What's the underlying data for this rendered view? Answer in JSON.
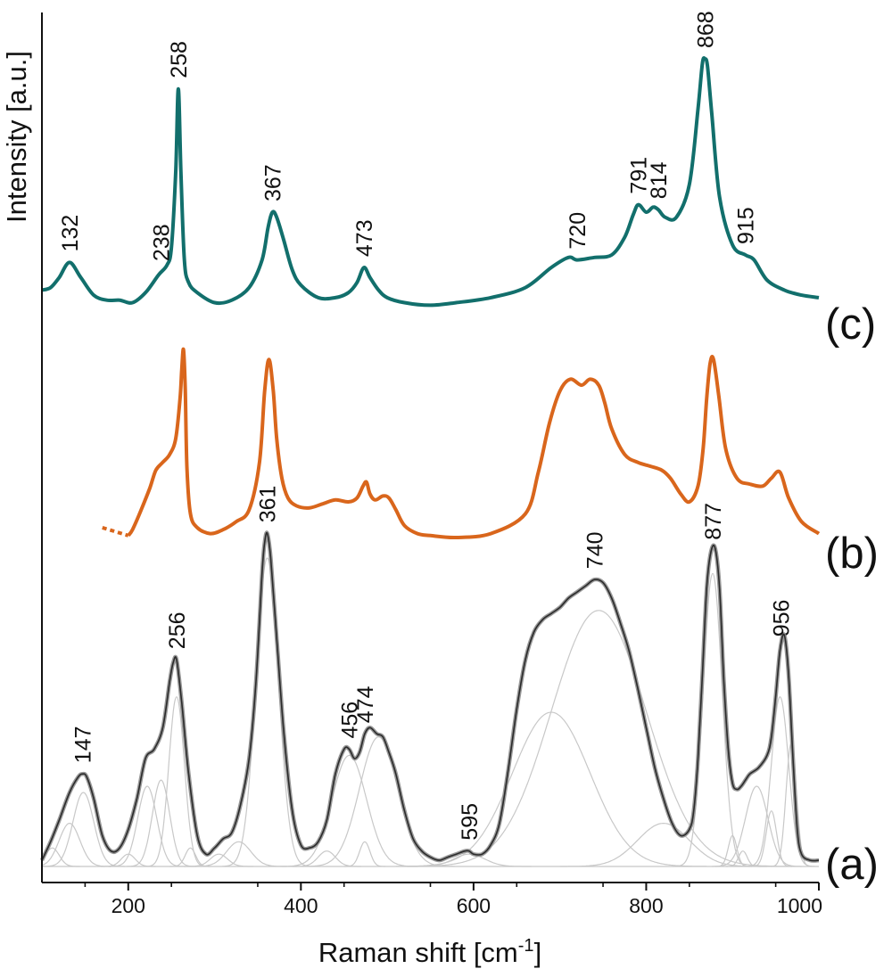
{
  "chart_data": {
    "type": "line",
    "title": "",
    "xlabel": "Raman shift [cm",
    "xlabel_superscript": "-1",
    "xlabel_suffix": "]",
    "ylabel": "Intensity [a.u.]",
    "xlim": [
      100,
      1000
    ],
    "x_ticks": [
      200,
      400,
      600,
      800,
      1000
    ],
    "grid": false,
    "colors": {
      "c": "#126f6c",
      "b": "#d9661c",
      "a_fit": "#2b2b2b",
      "a_raw": "#999999",
      "components": "#c8c8c8",
      "axis": "#111111"
    },
    "series": [
      {
        "name": "(c)",
        "peak_labels": [
          "132",
          "238",
          "258",
          "367",
          "473",
          "720",
          "791",
          "814",
          "868",
          "915"
        ],
        "peak_positions": [
          132,
          238,
          258,
          367,
          473,
          720,
          791,
          814,
          868,
          915
        ],
        "x": [
          100,
          110,
          120,
          132,
          145,
          160,
          175,
          190,
          205,
          220,
          235,
          245,
          250,
          255,
          258,
          261,
          265,
          270,
          280,
          300,
          320,
          340,
          355,
          362,
          367,
          372,
          380,
          390,
          400,
          420,
          440,
          455,
          465,
          473,
          480,
          490,
          500,
          520,
          550,
          580,
          620,
          660,
          690,
          710,
          720,
          740,
          760,
          775,
          785,
          791,
          800,
          808,
          814,
          822,
          835,
          850,
          860,
          865,
          868,
          871,
          876,
          885,
          900,
          915,
          925,
          940,
          960,
          980,
          1000
        ],
        "y": [
          0.08,
          0.09,
          0.13,
          0.19,
          0.13,
          0.06,
          0.04,
          0.04,
          0.03,
          0.07,
          0.14,
          0.18,
          0.25,
          0.55,
          0.88,
          0.55,
          0.2,
          0.11,
          0.07,
          0.03,
          0.04,
          0.09,
          0.2,
          0.33,
          0.39,
          0.37,
          0.28,
          0.16,
          0.1,
          0.05,
          0.05,
          0.07,
          0.11,
          0.17,
          0.13,
          0.08,
          0.05,
          0.03,
          0.02,
          0.03,
          0.05,
          0.09,
          0.17,
          0.21,
          0.2,
          0.21,
          0.22,
          0.29,
          0.38,
          0.42,
          0.39,
          0.41,
          0.4,
          0.37,
          0.37,
          0.5,
          0.8,
          0.98,
          1.0,
          0.97,
          0.78,
          0.45,
          0.26,
          0.22,
          0.2,
          0.12,
          0.08,
          0.06,
          0.05
        ]
      },
      {
        "name": "(b)",
        "x": [
          200,
          205,
          215,
          225,
          232,
          240,
          248,
          255,
          260,
          262,
          264,
          266,
          268,
          272,
          280,
          295,
          310,
          325,
          340,
          352,
          358,
          363,
          368,
          372,
          378,
          385,
          395,
          410,
          425,
          440,
          455,
          465,
          472,
          476,
          480,
          486,
          495,
          502,
          510,
          520,
          535,
          550,
          580,
          620,
          660,
          675,
          688,
          700,
          712,
          725,
          735,
          745,
          752,
          760,
          775,
          790,
          805,
          818,
          828,
          840,
          850,
          860,
          866,
          870,
          874,
          878,
          884,
          892,
          905,
          920,
          935,
          945,
          955,
          965,
          980,
          1000
        ],
        "y": [
          0.01,
          0.04,
          0.14,
          0.25,
          0.34,
          0.38,
          0.42,
          0.5,
          0.7,
          0.85,
          0.95,
          0.75,
          0.35,
          0.12,
          0.05,
          0.02,
          0.04,
          0.08,
          0.14,
          0.38,
          0.74,
          0.9,
          0.74,
          0.5,
          0.3,
          0.2,
          0.16,
          0.15,
          0.17,
          0.19,
          0.18,
          0.2,
          0.26,
          0.28,
          0.22,
          0.19,
          0.21,
          0.2,
          0.14,
          0.06,
          0.02,
          0.01,
          0.0,
          0.02,
          0.12,
          0.33,
          0.58,
          0.74,
          0.8,
          0.77,
          0.8,
          0.77,
          0.68,
          0.55,
          0.42,
          0.38,
          0.36,
          0.34,
          0.3,
          0.22,
          0.18,
          0.26,
          0.45,
          0.7,
          0.88,
          0.9,
          0.72,
          0.45,
          0.3,
          0.27,
          0.26,
          0.3,
          0.33,
          0.2,
          0.08,
          0.02
        ],
        "dashed_x": [
          170,
          200
        ],
        "dashed_y": [
          0.05,
          0.01
        ]
      },
      {
        "name": "(a)",
        "peak_labels": [
          "147",
          "256",
          "361",
          "456",
          "474",
          "595",
          "740",
          "877",
          "956"
        ],
        "peak_positions": [
          147,
          256,
          361,
          456,
          474,
          595,
          740,
          877,
          956
        ],
        "x": [
          100,
          110,
          120,
          132,
          142,
          147,
          152,
          160,
          170,
          180,
          190,
          200,
          210,
          220,
          230,
          240,
          248,
          252,
          256,
          262,
          270,
          280,
          290,
          300,
          310,
          320,
          330,
          340,
          348,
          355,
          358,
          361,
          365,
          372,
          380,
          390,
          400,
          410,
          420,
          430,
          440,
          450,
          456,
          462,
          468,
          474,
          480,
          488,
          495,
          502,
          510,
          520,
          530,
          540,
          550,
          560,
          570,
          580,
          590,
          595,
          600,
          610,
          620,
          630,
          640,
          650,
          660,
          670,
          680,
          690,
          700,
          710,
          720,
          730,
          740,
          750,
          760,
          770,
          780,
          790,
          800,
          810,
          820,
          830,
          840,
          850,
          855,
          860,
          865,
          870,
          875,
          880,
          885,
          890,
          895,
          900,
          905,
          910,
          915,
          920,
          930,
          940,
          945,
          950,
          955,
          960,
          965,
          970,
          975,
          980,
          990,
          1000
        ],
        "y": [
          0.02,
          0.08,
          0.15,
          0.24,
          0.29,
          0.3,
          0.29,
          0.22,
          0.1,
          0.05,
          0.06,
          0.12,
          0.22,
          0.35,
          0.38,
          0.45,
          0.6,
          0.66,
          0.67,
          0.53,
          0.3,
          0.1,
          0.04,
          0.06,
          0.09,
          0.11,
          0.2,
          0.35,
          0.6,
          0.95,
          1.05,
          1.08,
          1.0,
          0.74,
          0.44,
          0.18,
          0.07,
          0.06,
          0.08,
          0.15,
          0.3,
          0.38,
          0.38,
          0.35,
          0.37,
          0.43,
          0.45,
          0.43,
          0.42,
          0.37,
          0.3,
          0.18,
          0.09,
          0.05,
          0.03,
          0.02,
          0.03,
          0.04,
          0.05,
          0.05,
          0.04,
          0.04,
          0.07,
          0.14,
          0.31,
          0.51,
          0.67,
          0.76,
          0.8,
          0.82,
          0.84,
          0.87,
          0.89,
          0.91,
          0.93,
          0.92,
          0.87,
          0.79,
          0.7,
          0.58,
          0.45,
          0.32,
          0.22,
          0.14,
          0.1,
          0.12,
          0.18,
          0.35,
          0.62,
          0.9,
          1.02,
          1.03,
          0.9,
          0.6,
          0.38,
          0.27,
          0.25,
          0.26,
          0.28,
          0.3,
          0.32,
          0.36,
          0.42,
          0.55,
          0.7,
          0.75,
          0.62,
          0.35,
          0.12,
          0.04,
          0.02,
          0.02
        ],
        "components": [
          {
            "center": 112,
            "height": 0.06,
            "width": 8
          },
          {
            "center": 132,
            "height": 0.14,
            "width": 12
          },
          {
            "center": 148,
            "height": 0.24,
            "width": 12
          },
          {
            "center": 200,
            "height": 0.04,
            "width": 8
          },
          {
            "center": 222,
            "height": 0.26,
            "width": 11
          },
          {
            "center": 238,
            "height": 0.28,
            "width": 10
          },
          {
            "center": 256,
            "height": 0.55,
            "width": 9
          },
          {
            "center": 272,
            "height": 0.06,
            "width": 6
          },
          {
            "center": 305,
            "height": 0.04,
            "width": 10
          },
          {
            "center": 328,
            "height": 0.08,
            "width": 14
          },
          {
            "center": 361,
            "height": 1.0,
            "width": 13
          },
          {
            "center": 430,
            "height": 0.05,
            "width": 10
          },
          {
            "center": 456,
            "height": 0.36,
            "width": 20
          },
          {
            "center": 474,
            "height": 0.08,
            "width": 6
          },
          {
            "center": 490,
            "height": 0.42,
            "width": 22
          },
          {
            "center": 595,
            "height": 0.04,
            "width": 18
          },
          {
            "center": 690,
            "height": 0.5,
            "width": 45
          },
          {
            "center": 745,
            "height": 0.83,
            "width": 55
          },
          {
            "center": 820,
            "height": 0.14,
            "width": 30
          },
          {
            "center": 877,
            "height": 0.95,
            "width": 11
          },
          {
            "center": 900,
            "height": 0.1,
            "width": 5
          },
          {
            "center": 912,
            "height": 0.05,
            "width": 5
          },
          {
            "center": 928,
            "height": 0.26,
            "width": 13
          },
          {
            "center": 945,
            "height": 0.18,
            "width": 6
          },
          {
            "center": 955,
            "height": 0.55,
            "width": 10
          },
          {
            "center": 968,
            "height": 0.4,
            "width": 6
          }
        ]
      }
    ]
  }
}
